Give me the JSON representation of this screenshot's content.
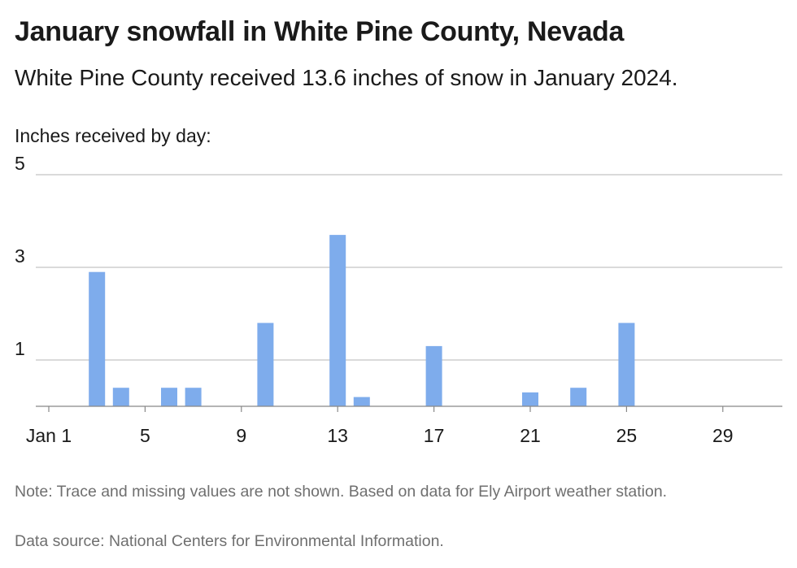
{
  "header": {
    "title": "January snowfall in White Pine County, Nevada",
    "subtitle": "White Pine County received 13.6 inches of snow in January 2024.",
    "unit_label": "Inches received by day:"
  },
  "footer": {
    "note": "Note: Trace and missing values are not shown. Based on data for Ely Airport weather station.",
    "source": "Data source: National Centers for Environmental Information."
  },
  "colors": {
    "bar": "#7eacec",
    "grid": "#c4c4c4",
    "axis": "#888888"
  },
  "chart_data": {
    "type": "bar",
    "title": "January snowfall in White Pine County, Nevada",
    "subtitle": "White Pine County received 13.6 inches of snow in January 2024.",
    "ylabel": "Inches received by day:",
    "xlabel": "",
    "ylim": [
      0,
      5
    ],
    "yticks": [
      1,
      3,
      5
    ],
    "grid": true,
    "x": [
      1,
      2,
      3,
      4,
      5,
      6,
      7,
      8,
      9,
      10,
      11,
      12,
      13,
      14,
      15,
      16,
      17,
      18,
      19,
      20,
      21,
      22,
      23,
      24,
      25,
      26,
      27,
      28,
      29,
      30,
      31
    ],
    "xtick_days": [
      1,
      5,
      9,
      13,
      17,
      21,
      25,
      29
    ],
    "xtick_labels": [
      "Jan 1",
      "5",
      "9",
      "13",
      "17",
      "21",
      "25",
      "29"
    ],
    "values": [
      0,
      0,
      2.9,
      0.4,
      0,
      0.4,
      0.4,
      0,
      0,
      1.8,
      0,
      0,
      3.7,
      0.2,
      0,
      0,
      1.3,
      0,
      0,
      0,
      0.3,
      0,
      0.4,
      0,
      1.8,
      0,
      0,
      0,
      0,
      0,
      0
    ]
  }
}
